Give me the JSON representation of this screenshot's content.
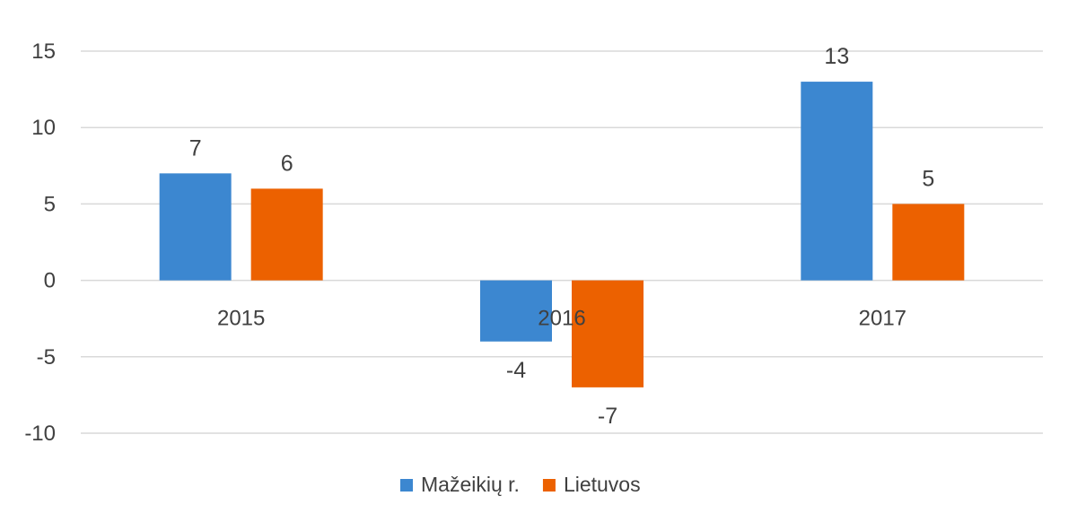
{
  "chart_data": {
    "type": "bar",
    "categories": [
      "2015",
      "2016",
      "2017"
    ],
    "series": [
      {
        "name": "Mažeikių r.",
        "values": [
          7,
          -4,
          13
        ],
        "color": "#3c87d0"
      },
      {
        "name": "Lietuvos",
        "values": [
          6,
          -7,
          5
        ],
        "color": "#ec6100"
      }
    ],
    "ylim": [
      -10,
      15
    ],
    "yticks": [
      15,
      10,
      5,
      0,
      -5,
      -10
    ],
    "grid": true,
    "legend_position": "bottom",
    "data_labels": true
  }
}
